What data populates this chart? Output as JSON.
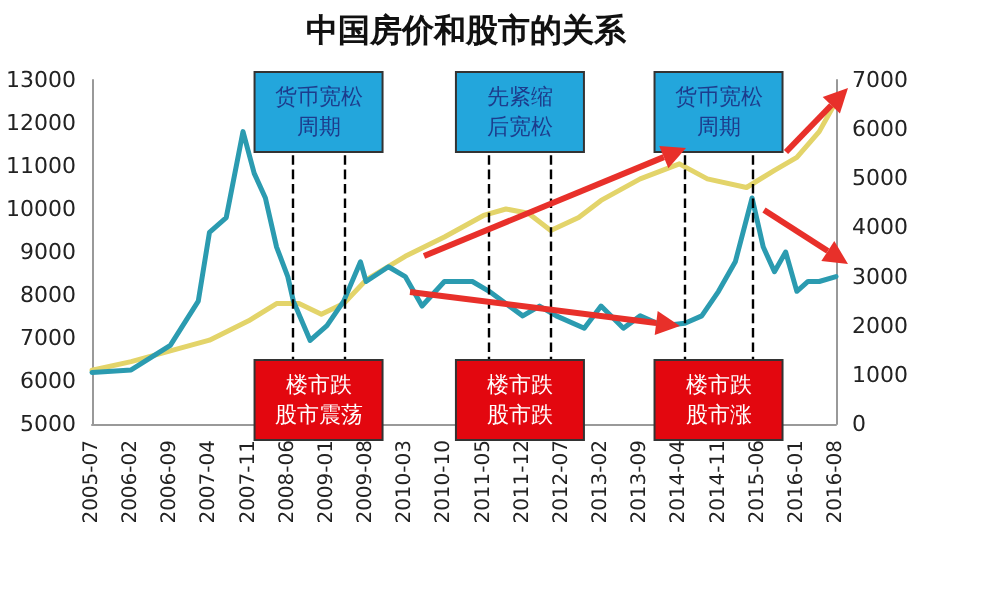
{
  "chart_data": {
    "type": "line",
    "title": "中国房价和股市的关系",
    "xlim": [
      "2005-07",
      "2016-08"
    ],
    "xticks": [
      "2005-07",
      "2006-02",
      "2006-09",
      "2007-04",
      "2007-11",
      "2008-06",
      "2009-01",
      "2009-08",
      "2010-03",
      "2010-10",
      "2011-05",
      "2011-12",
      "2012-07",
      "2013-02",
      "2013-09",
      "2014-04",
      "2014-11",
      "2015-06",
      "2016-01",
      "2016-08"
    ],
    "ylim": [
      5000,
      13000
    ],
    "yticks": [
      5000,
      6000,
      7000,
      8000,
      9000,
      10000,
      11000,
      12000,
      13000
    ],
    "y2lim": [
      0,
      7000
    ],
    "y2ticks": [
      0,
      1000,
      2000,
      3000,
      4000,
      5000,
      6000,
      7000
    ],
    "marker": "none",
    "line_style": "solid",
    "series": [
      {
        "color": "#e3d46a",
        "x": [
          "2005-07",
          "2006-02",
          "2006-09",
          "2007-04",
          "2007-11",
          "2008-04",
          "2008-08",
          "2008-12",
          "2009-04",
          "2009-08",
          "2010-03",
          "2010-10",
          "2011-05",
          "2011-09",
          "2012-01",
          "2012-05",
          "2012-10",
          "2013-02",
          "2013-09",
          "2014-04",
          "2014-09",
          "2015-04",
          "2015-09",
          "2016-01",
          "2016-05",
          "2016-08"
        ],
        "values": [
          6250,
          6450,
          6700,
          6950,
          7400,
          7800,
          7800,
          7550,
          7800,
          8350,
          8900,
          9350,
          9850,
          10000,
          9900,
          9500,
          9800,
          10200,
          10700,
          11050,
          10700,
          10500,
          10900,
          11200,
          11800,
          12500
        ]
      },
      {
        "color": "#2b9bb0",
        "axis": "y2",
        "x": [
          "2005-07",
          "2006-02",
          "2006-09",
          "2007-02",
          "2007-04",
          "2007-07",
          "2007-10",
          "2007-12",
          "2008-02",
          "2008-04",
          "2008-06",
          "2008-07",
          "2008-10",
          "2009-01",
          "2009-04",
          "2009-07",
          "2009-08",
          "2009-12",
          "2010-03",
          "2010-06",
          "2010-10",
          "2011-03",
          "2011-06",
          "2011-12",
          "2012-03",
          "2012-06",
          "2012-11",
          "2013-02",
          "2013-06",
          "2013-09",
          "2014-01",
          "2014-05",
          "2014-08",
          "2014-11",
          "2015-02",
          "2015-05",
          "2015-07",
          "2015-09",
          "2015-11",
          "2016-01",
          "2016-03",
          "2016-05",
          "2016-08"
        ],
        "values": [
          1050,
          1100,
          1600,
          2500,
          3900,
          4200,
          5950,
          5100,
          4600,
          3600,
          3000,
          2500,
          1700,
          2000,
          2500,
          3300,
          2900,
          3200,
          3000,
          2400,
          2900,
          2900,
          2700,
          2200,
          2400,
          2200,
          1950,
          2400,
          1950,
          2200,
          2000,
          2050,
          2200,
          2700,
          3300,
          4600,
          3600,
          3100,
          3500,
          2700,
          2900,
          2900,
          3000
        ]
      }
    ],
    "ref_lines": [
      {
        "axis": "x",
        "value": "2008-07",
        "color": "#000000",
        "line_style": "dashed"
      },
      {
        "axis": "x",
        "value": "2009-04",
        "color": "#000000",
        "line_style": "dashed"
      },
      {
        "axis": "x",
        "value": "2011-06",
        "color": "#000000",
        "line_style": "dashed"
      },
      {
        "axis": "x",
        "value": "2012-05",
        "color": "#000000",
        "line_style": "dashed"
      },
      {
        "axis": "x",
        "value": "2014-05",
        "color": "#000000",
        "line_style": "dashed"
      },
      {
        "axis": "x",
        "value": "2015-05",
        "color": "#000000",
        "line_style": "dashed"
      }
    ],
    "annotations": [
      "货币宽松周期",
      "先紧缩后宽松",
      "货币宽松周期",
      "楼市跌股市震荡",
      "楼市跌股市跌",
      "楼市跌股市涨"
    ]
  }
}
